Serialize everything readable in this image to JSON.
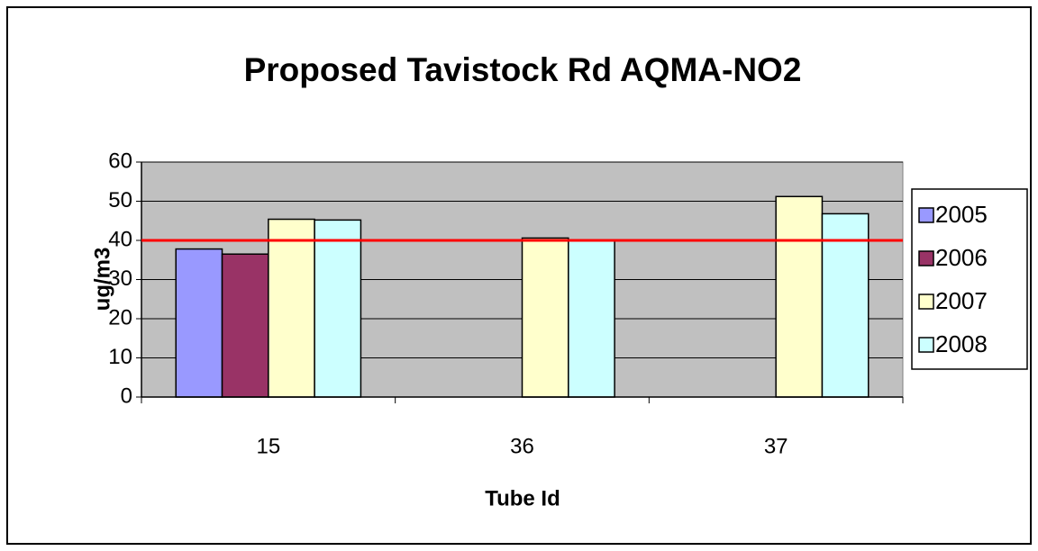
{
  "chart_data": {
    "type": "bar",
    "title": "Proposed Tavistock Rd AQMA-NO2",
    "x_label": "Tube Id",
    "y_label": "ug/m3",
    "categories": [
      "15",
      "36",
      "37"
    ],
    "series": [
      {
        "name": "2005",
        "color": "#9999ff",
        "values": [
          37.8,
          null,
          null
        ]
      },
      {
        "name": "2006",
        "color": "#993366",
        "values": [
          36.5,
          null,
          null
        ]
      },
      {
        "name": "2007",
        "color": "#ffffcc",
        "values": [
          45.4,
          40.6,
          51.2
        ]
      },
      {
        "name": "2008",
        "color": "#ccffff",
        "values": [
          45.2,
          39.9,
          46.8
        ]
      }
    ],
    "ylim": [
      0,
      60
    ],
    "yticks": [
      0,
      10,
      20,
      30,
      40,
      50,
      60
    ],
    "grid": true,
    "reference_line": {
      "value": 40,
      "color": "#ff0000"
    },
    "legend": "right"
  }
}
